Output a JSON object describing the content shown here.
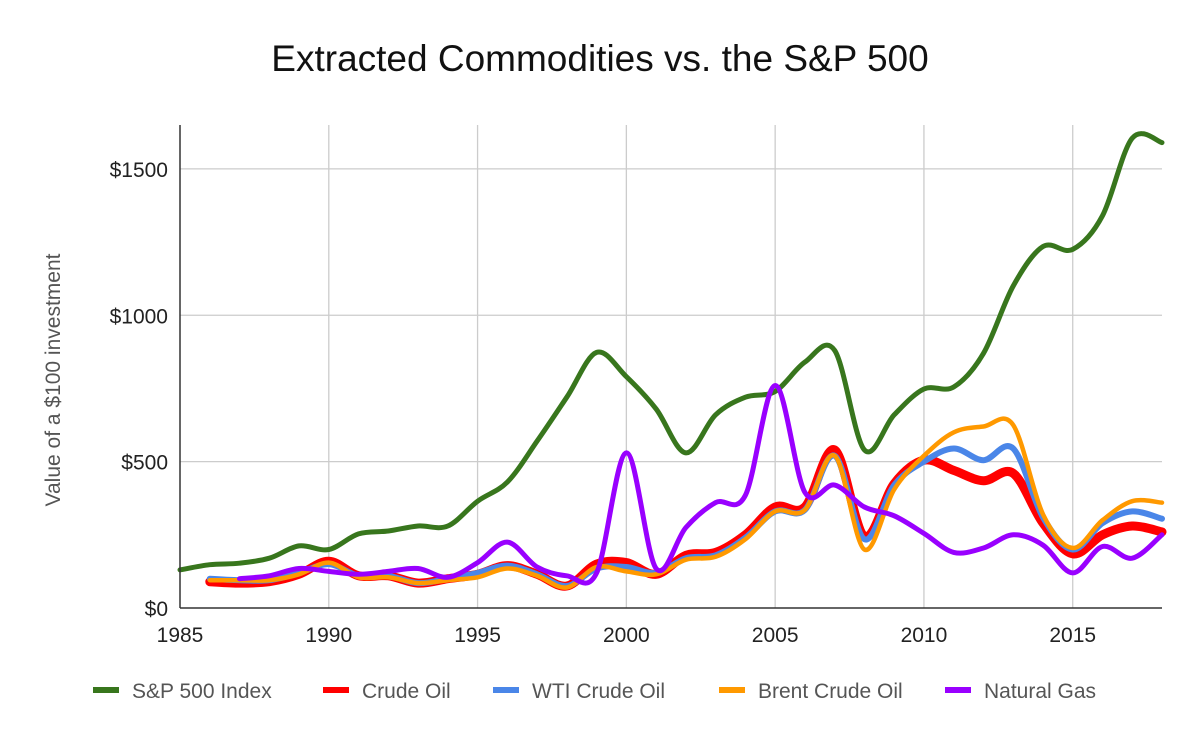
{
  "chart_data": {
    "type": "line",
    "title": "Extracted Commodities vs. the S&P 500",
    "xlabel": "",
    "ylabel": "Value of a $100 investment",
    "xlim": [
      1985,
      2018
    ],
    "ylim": [
      0,
      1650
    ],
    "x_ticks": [
      "1985",
      "1990",
      "1995",
      "2000",
      "2005",
      "2010",
      "2015"
    ],
    "y_ticks": [
      "$0",
      "$500",
      "$1000",
      "$1500"
    ],
    "grid": true,
    "legend_position": "bottom",
    "series": [
      {
        "name": "S&P 500 Index",
        "color": "#38761d",
        "x": [
          1985,
          1986,
          1987,
          1988,
          1989,
          1990,
          1991,
          1992,
          1993,
          1994,
          1995,
          1996,
          1997,
          1998,
          1999,
          2000,
          2001,
          2002,
          2003,
          2004,
          2005,
          2006,
          2007,
          2008,
          2009,
          2010,
          2011,
          2012,
          2013,
          2014,
          2015,
          2016,
          2017,
          2018
        ],
        "values": [
          130,
          148,
          153,
          170,
          212,
          200,
          253,
          263,
          280,
          280,
          365,
          430,
          570,
          720,
          873,
          790,
          680,
          530,
          660,
          720,
          740,
          840,
          880,
          540,
          660,
          748,
          755,
          870,
          1100,
          1235,
          1225,
          1340,
          1605,
          1590
        ]
      },
      {
        "name": "Crude Oil",
        "color": "#ff0000",
        "x": [
          1986,
          1987,
          1988,
          1989,
          1990,
          1991,
          1992,
          1993,
          1994,
          1995,
          1996,
          1997,
          1998,
          1999,
          2000,
          2001,
          2002,
          2003,
          2004,
          2005,
          2006,
          2007,
          2008,
          2009,
          2010,
          2011,
          2012,
          2013,
          2014,
          2015,
          2016,
          2017,
          2018
        ],
        "values": [
          90,
          85,
          90,
          115,
          160,
          110,
          110,
          85,
          100,
          115,
          145,
          115,
          75,
          150,
          155,
          115,
          180,
          190,
          250,
          345,
          345,
          540,
          245,
          425,
          505,
          470,
          435,
          460,
          290,
          185,
          250,
          280,
          260
        ]
      },
      {
        "name": "WTI Crude Oil",
        "color": "#4a86e8",
        "x": [
          1986,
          1987,
          1988,
          1989,
          1990,
          1991,
          1992,
          1993,
          1994,
          1995,
          1996,
          1997,
          1998,
          1999,
          2000,
          2001,
          2002,
          2003,
          2004,
          2005,
          2006,
          2007,
          2008,
          2009,
          2010,
          2011,
          2012,
          2013,
          2014,
          2015,
          2016,
          2017,
          2018
        ],
        "values": [
          100,
          95,
          95,
          120,
          150,
          110,
          110,
          85,
          100,
          120,
          145,
          115,
          75,
          135,
          140,
          120,
          170,
          180,
          240,
          330,
          335,
          520,
          235,
          420,
          500,
          545,
          505,
          545,
          310,
          200,
          290,
          330,
          305
        ]
      },
      {
        "name": "Brent Crude Oil",
        "color": "#ff9900",
        "x": [
          1986,
          1987,
          1988,
          1989,
          1990,
          1991,
          1992,
          1993,
          1994,
          1995,
          1996,
          1997,
          1998,
          1999,
          2000,
          2001,
          2002,
          2003,
          2004,
          2005,
          2006,
          2007,
          2008,
          2009,
          2010,
          2011,
          2012,
          2013,
          2014,
          2015,
          2016,
          2017,
          2018
        ],
        "values": [
          95,
          95,
          95,
          115,
          155,
          105,
          105,
          85,
          95,
          105,
          135,
          110,
          70,
          140,
          125,
          115,
          165,
          175,
          235,
          330,
          335,
          520,
          200,
          405,
          520,
          600,
          620,
          625,
          320,
          205,
          300,
          365,
          360
        ]
      },
      {
        "name": "Natural Gas",
        "color": "#9900ff",
        "x": [
          1987,
          1988,
          1989,
          1990,
          1991,
          1992,
          1993,
          1994,
          1995,
          1996,
          1997,
          1998,
          1999,
          2000,
          2001,
          2002,
          2003,
          2004,
          2005,
          2006,
          2007,
          2008,
          2009,
          2010,
          2011,
          2012,
          2013,
          2014,
          2015,
          2016,
          2017,
          2018
        ],
        "values": [
          100,
          110,
          135,
          125,
          115,
          125,
          135,
          105,
          155,
          225,
          140,
          110,
          120,
          530,
          135,
          275,
          360,
          385,
          760,
          395,
          420,
          345,
          315,
          255,
          190,
          205,
          250,
          215,
          120,
          210,
          170,
          250
        ]
      }
    ]
  }
}
